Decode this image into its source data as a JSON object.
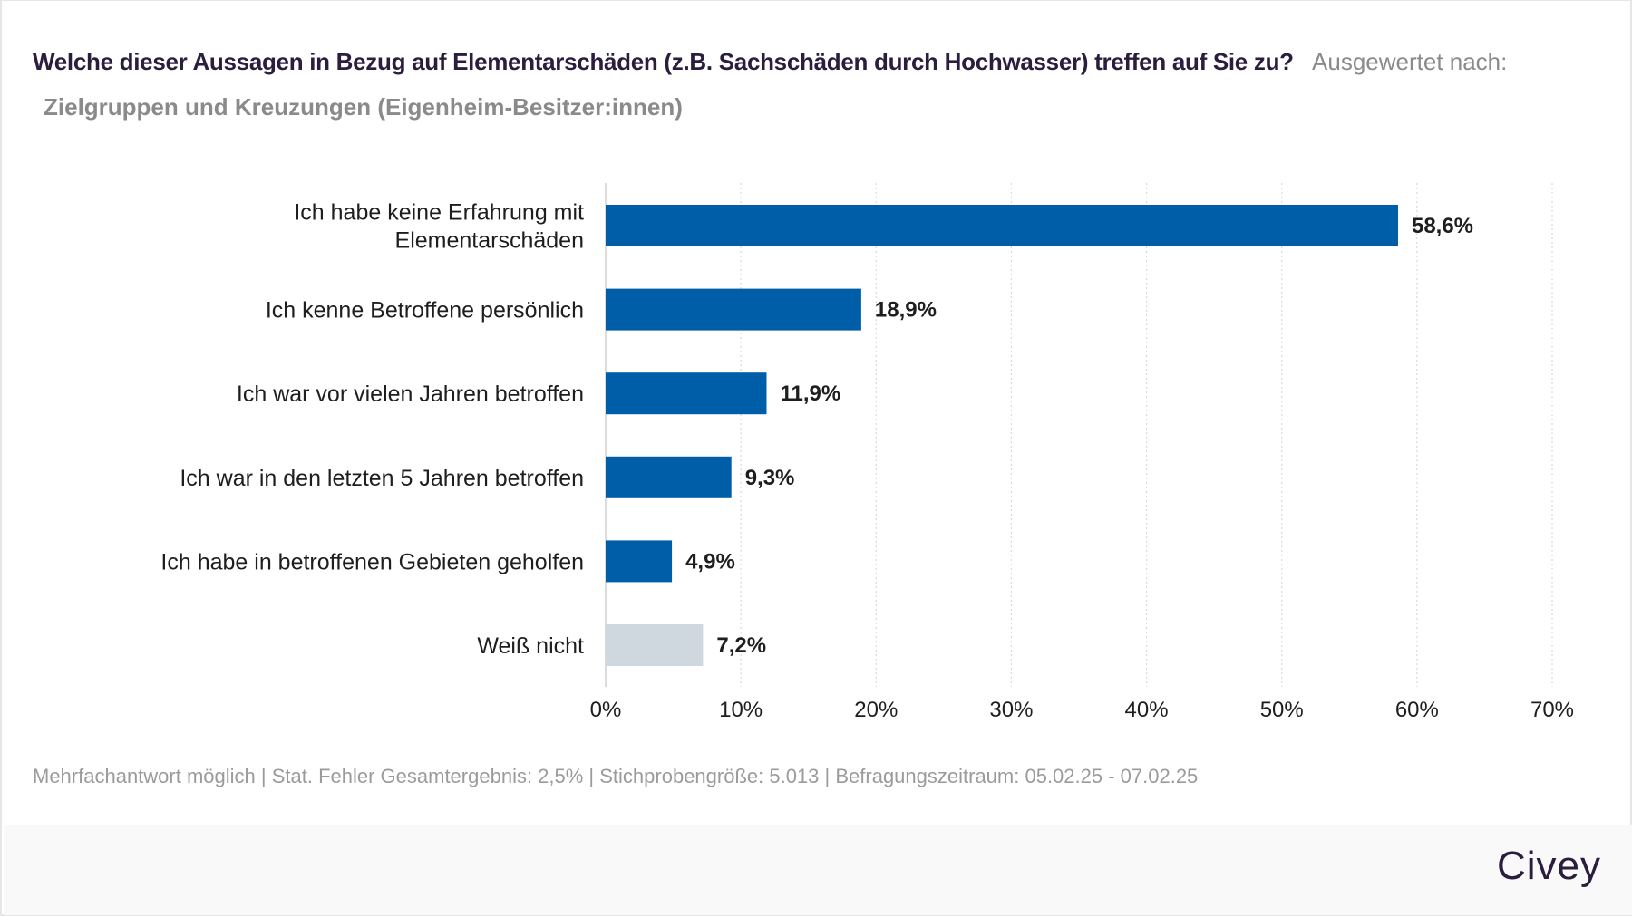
{
  "header": {
    "question": "Welche dieser Aussagen in Bezug auf Elementarschäden (z.B. Sachschäden durch Hochwasser) treffen auf Sie zu?",
    "segment_prefix": "Ausgewertet nach:",
    "segment_value": "Zielgruppen und Kreuzungen (Eigenheim-Besitzer:innen)"
  },
  "footer": {
    "note": "Mehrfachantwort möglich | Stat. Fehler Gesamtergebnis: 2,5% | Stichprobengröße: 5.013 | Befragungszeitraum: 05.02.25 - 07.02.25",
    "brand": "Civey"
  },
  "colors": {
    "primary_bar": "#005ea8",
    "neutral_bar": "#cfd8df",
    "title": "#2a1d3d",
    "muted_text": "#9b9b9b"
  },
  "chart_data": {
    "type": "bar",
    "orientation": "horizontal",
    "title": "Welche dieser Aussagen in Bezug auf Elementarschäden (z.B. Sachschäden durch Hochwasser) treffen auf Sie zu?",
    "xlabel": "",
    "ylabel": "",
    "categories": [
      [
        "Ich habe keine Erfahrung mit",
        "Elementarschäden"
      ],
      [
        "Ich kenne Betroffene persönlich"
      ],
      [
        "Ich war vor vielen Jahren betroffen"
      ],
      [
        "Ich war in den letzten 5 Jahren betroffen"
      ],
      [
        "Ich habe in betroffenen Gebieten geholfen"
      ],
      [
        "Weiß nicht"
      ]
    ],
    "values": [
      58.6,
      18.9,
      11.9,
      9.3,
      4.9,
      7.2
    ],
    "value_labels": [
      "58,6%",
      "18,9%",
      "11,9%",
      "9,3%",
      "4,9%",
      "7,2%"
    ],
    "bar_color_keys": [
      "primary_bar",
      "primary_bar",
      "primary_bar",
      "primary_bar",
      "primary_bar",
      "neutral_bar"
    ],
    "xlim": [
      0,
      70
    ],
    "x_ticks": [
      0,
      10,
      20,
      30,
      40,
      50,
      60,
      70
    ],
    "x_tick_labels": [
      "0%",
      "10%",
      "20%",
      "30%",
      "40%",
      "50%",
      "60%",
      "70%"
    ],
    "grid": "vertical dotted",
    "legend": "none"
  }
}
